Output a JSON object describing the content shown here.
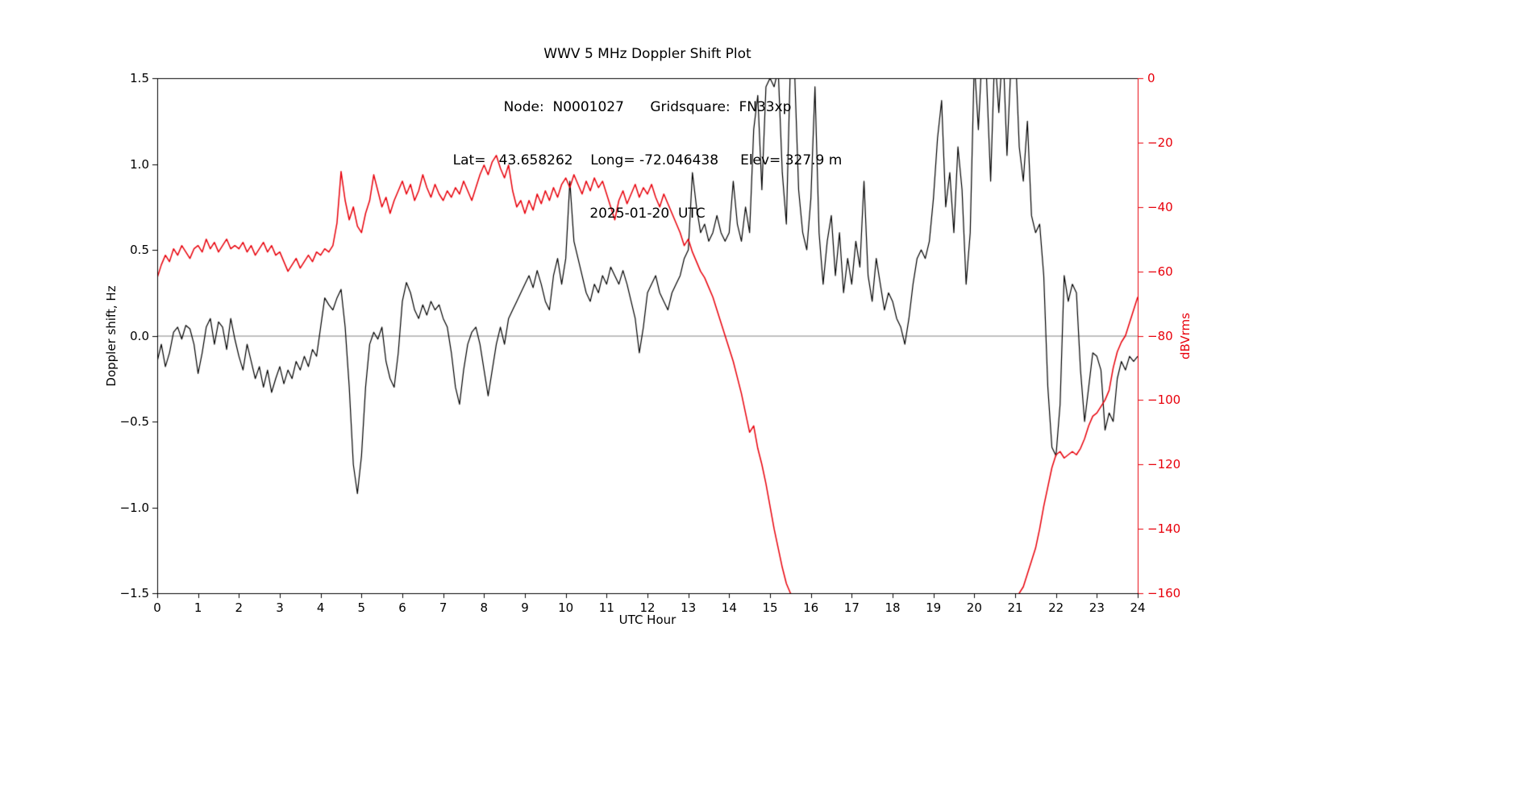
{
  "header": {
    "title": "WWV 5 MHz Doppler Shift Plot",
    "subtitle_node": "Node:  N0001027      Gridsquare:  FN33xp",
    "subtitle_coords": "Lat=   43.658262    Long= -72.046438     Elev= 327.9 m",
    "subtitle_date": "2025-01-20  UTC"
  },
  "chart_data": {
    "type": "line",
    "title": "WWV 5 MHz Doppler Shift Plot",
    "xlabel": "UTC Hour",
    "ylabel_left": "Doppler shift, Hz",
    "ylabel_right": "dBVrms",
    "xlim": [
      0,
      24
    ],
    "ylim_left": [
      -1.5,
      1.5
    ],
    "ylim_right": [
      -160,
      0
    ],
    "grid": false,
    "legend": "none",
    "zero_line": {
      "value": 0.0,
      "color": "#808080"
    },
    "colors": {
      "doppler": "#000000",
      "dbv": "#e8000b"
    },
    "xticks": {
      "values": [
        0,
        1,
        2,
        3,
        4,
        5,
        6,
        7,
        8,
        9,
        10,
        11,
        12,
        13,
        14,
        15,
        16,
        17,
        18,
        19,
        20,
        21,
        22,
        23,
        24
      ],
      "labels": [
        "0",
        "1",
        "2",
        "3",
        "4",
        "5",
        "6",
        "7",
        "8",
        "9",
        "10",
        "11",
        "12",
        "13",
        "14",
        "15",
        "16",
        "17",
        "18",
        "19",
        "20",
        "21",
        "22",
        "23",
        "24"
      ]
    },
    "yticks_left": {
      "values": [
        -1.5,
        -1.0,
        -0.5,
        0.0,
        0.5,
        1.0,
        1.5
      ],
      "labels": [
        "−1.5",
        "−1.0",
        "−0.5",
        "0.0",
        "0.5",
        "1.0",
        "1.5"
      ]
    },
    "yticks_right": {
      "values": [
        0,
        -20,
        -40,
        -60,
        -80,
        -100,
        -120,
        -140,
        -160
      ],
      "labels": [
        "0",
        "−20",
        "−40",
        "−60",
        "−80",
        "−100",
        "−120",
        "−140",
        "−160"
      ]
    },
    "x_start": 0,
    "x_step": 0.1,
    "series": [
      {
        "name": "Doppler shift, Hz",
        "axis": "left",
        "color": "#000000",
        "width": 1.2,
        "values": [
          -0.15,
          -0.05,
          -0.18,
          -0.1,
          0.02,
          0.05,
          -0.02,
          0.06,
          0.04,
          -0.05,
          -0.22,
          -0.1,
          0.05,
          0.1,
          -0.05,
          0.08,
          0.05,
          -0.08,
          0.1,
          -0.02,
          -0.12,
          -0.2,
          -0.05,
          -0.15,
          -0.25,
          -0.18,
          -0.3,
          -0.2,
          -0.33,
          -0.25,
          -0.18,
          -0.28,
          -0.2,
          -0.25,
          -0.15,
          -0.2,
          -0.12,
          -0.18,
          -0.08,
          -0.12,
          0.05,
          0.22,
          0.18,
          0.15,
          0.22,
          0.27,
          0.05,
          -0.3,
          -0.75,
          -0.92,
          -0.7,
          -0.3,
          -0.05,
          0.02,
          -0.02,
          0.05,
          -0.15,
          -0.25,
          -0.3,
          -0.1,
          0.2,
          0.31,
          0.25,
          0.15,
          0.1,
          0.18,
          0.12,
          0.2,
          0.15,
          0.18,
          0.1,
          0.05,
          -0.1,
          -0.3,
          -0.4,
          -0.2,
          -0.05,
          0.02,
          0.05,
          -0.05,
          -0.2,
          -0.35,
          -0.2,
          -0.05,
          0.05,
          -0.05,
          0.1,
          0.15,
          0.2,
          0.25,
          0.3,
          0.35,
          0.28,
          0.38,
          0.3,
          0.2,
          0.15,
          0.35,
          0.45,
          0.3,
          0.45,
          0.9,
          0.55,
          0.45,
          0.35,
          0.25,
          0.2,
          0.3,
          0.25,
          0.35,
          0.3,
          0.4,
          0.35,
          0.3,
          0.38,
          0.3,
          0.2,
          0.1,
          -0.1,
          0.05,
          0.25,
          0.3,
          0.35,
          0.25,
          0.2,
          0.15,
          0.25,
          0.3,
          0.35,
          0.45,
          0.5,
          0.95,
          0.75,
          0.6,
          0.65,
          0.55,
          0.6,
          0.7,
          0.6,
          0.55,
          0.6,
          0.9,
          0.65,
          0.55,
          0.75,
          0.6,
          1.2,
          1.4,
          0.85,
          1.45,
          1.5,
          1.45,
          1.55,
          0.95,
          0.65,
          1.6,
          1.55,
          0.85,
          0.6,
          0.5,
          0.8,
          1.45,
          0.6,
          0.3,
          0.55,
          0.7,
          0.35,
          0.6,
          0.25,
          0.45,
          0.3,
          0.55,
          0.4,
          0.9,
          0.35,
          0.2,
          0.45,
          0.3,
          0.15,
          0.25,
          0.2,
          0.1,
          0.05,
          -0.05,
          0.1,
          0.3,
          0.45,
          0.5,
          0.45,
          0.55,
          0.8,
          1.15,
          1.37,
          0.75,
          0.95,
          0.6,
          1.1,
          0.85,
          0.3,
          0.6,
          1.6,
          1.2,
          1.7,
          1.5,
          0.9,
          1.65,
          1.3,
          1.7,
          1.05,
          1.6,
          1.7,
          1.1,
          0.9,
          1.25,
          0.7,
          0.6,
          0.65,
          0.35,
          -0.3,
          -0.65,
          -0.7,
          -0.4,
          0.35,
          0.2,
          0.3,
          0.25,
          -0.2,
          -0.5,
          -0.3,
          -0.1,
          -0.12,
          -0.2,
          -0.55,
          -0.45,
          -0.5,
          -0.25,
          -0.15,
          -0.2,
          -0.12,
          -0.15,
          -0.12
        ]
      },
      {
        "name": "dBVrms",
        "axis": "right",
        "color": "#e8000b",
        "width": 1.5,
        "values": [
          -62,
          -58,
          -55,
          -57,
          -53,
          -55,
          -52,
          -54,
          -56,
          -53,
          -52,
          -54,
          -50,
          -53,
          -51,
          -54,
          -52,
          -50,
          -53,
          -52,
          -53,
          -51,
          -54,
          -52,
          -55,
          -53,
          -51,
          -54,
          -52,
          -55,
          -54,
          -57,
          -60,
          -58,
          -56,
          -59,
          -57,
          -55,
          -57,
          -54,
          -55,
          -53,
          -54,
          -52,
          -45,
          -29,
          -38,
          -44,
          -40,
          -46,
          -48,
          -42,
          -38,
          -30,
          -35,
          -40,
          -37,
          -42,
          -38,
          -35,
          -32,
          -36,
          -33,
          -38,
          -35,
          -30,
          -34,
          -37,
          -33,
          -36,
          -38,
          -35,
          -37,
          -34,
          -36,
          -32,
          -35,
          -38,
          -34,
          -30,
          -27,
          -30,
          -26,
          -24,
          -28,
          -31,
          -27,
          -35,
          -40,
          -38,
          -42,
          -38,
          -41,
          -36,
          -39,
          -35,
          -38,
          -34,
          -37,
          -33,
          -31,
          -34,
          -30,
          -33,
          -36,
          -32,
          -35,
          -31,
          -34,
          -32,
          -36,
          -40,
          -44,
          -38,
          -35,
          -39,
          -36,
          -33,
          -37,
          -34,
          -36,
          -33,
          -37,
          -40,
          -36,
          -39,
          -42,
          -45,
          -48,
          -52,
          -50,
          -54,
          -57,
          -60,
          -62,
          -65,
          -68,
          -72,
          -76,
          -80,
          -84,
          -88,
          -93,
          -98,
          -104,
          -110,
          -108,
          -115,
          -120,
          -126,
          -133,
          -140,
          -146,
          -152,
          -157,
          -160,
          -161,
          -161,
          -161,
          -161,
          -161,
          -161,
          -161,
          -161,
          -161,
          -161,
          -161,
          -161,
          -161,
          -161,
          -161,
          -161,
          -161,
          -161,
          -161,
          -161,
          -161,
          -161,
          -161,
          -161,
          -161,
          -161,
          -161,
          -161,
          -161,
          -161,
          -161,
          -161,
          -161,
          -161,
          -161,
          -161,
          -161,
          -161,
          -161,
          -161,
          -161,
          -161,
          -161,
          -161,
          -161,
          -161,
          -161,
          -161,
          -161,
          -161,
          -161,
          -161,
          -161,
          -161,
          -161,
          -160,
          -158,
          -154,
          -150,
          -146,
          -140,
          -133,
          -127,
          -121,
          -117,
          -116,
          -118,
          -117,
          -116,
          -117,
          -115,
          -112,
          -108,
          -105,
          -104,
          -102,
          -100,
          -97,
          -90,
          -85,
          -82,
          -80,
          -76,
          -72,
          -68
        ]
      }
    ]
  }
}
